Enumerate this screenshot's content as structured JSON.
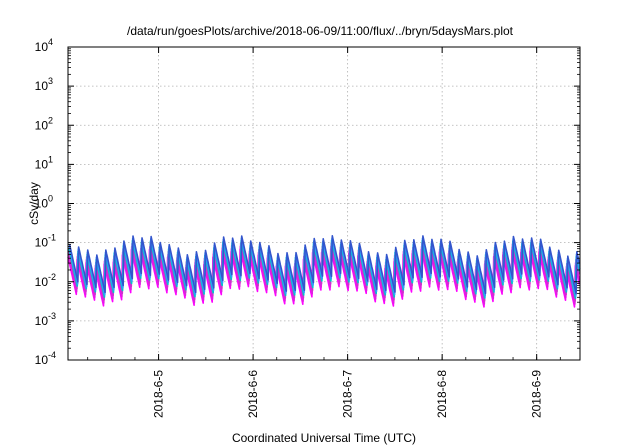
{
  "chart_data": {
    "type": "line",
    "title": "/data/run/goesPlots/archive/2018-06-09/11:00/flux/../bryn/5daysMars.plot",
    "xlabel": "Coordinated Universal Time (UTC)",
    "ylabel": "cSv/day",
    "y_scale": "log",
    "ylim": [
      0.0001,
      10000
    ],
    "y_ticks": [
      {
        "base": "10",
        "exp": "-4"
      },
      {
        "base": "10",
        "exp": "-3"
      },
      {
        "base": "10",
        "exp": "-2"
      },
      {
        "base": "10",
        "exp": "-1"
      },
      {
        "base": "10",
        "exp": "0"
      },
      {
        "base": "10",
        "exp": "1"
      },
      {
        "base": "10",
        "exp": "2"
      },
      {
        "base": "10",
        "exp": "3"
      },
      {
        "base": "10",
        "exp": "4"
      }
    ],
    "xlim": [
      "2018-06-04 01:00",
      "2018-06-09 11:00"
    ],
    "x_ticks": [
      {
        "label": "2018-6-5",
        "date": "2018-06-05"
      },
      {
        "label": "2018-6-6",
        "date": "2018-06-06"
      },
      {
        "label": "2018-6-7",
        "date": "2018-06-07"
      },
      {
        "label": "2018-6-8",
        "date": "2018-06-08"
      },
      {
        "label": "2018-6-9",
        "date": "2018-06-09"
      }
    ],
    "grid": true,
    "legend": "none",
    "series_pattern": {
      "sawtooth_period_hours": 2.3,
      "peak_hour_offsets": [
        0.0,
        0.3,
        0.6,
        0.9,
        1.2,
        1.5
      ],
      "peak_values": [
        0.12,
        0.09,
        0.07,
        0.05,
        0.04,
        0.025
      ],
      "trough_values": [
        0.015,
        0.011,
        0.008,
        0.006,
        0.0045,
        0.0035
      ]
    },
    "series": [
      {
        "color": "#ff00ff",
        "scale": 0.55
      },
      {
        "color": "#e020e0",
        "scale": 0.65
      },
      {
        "color": "#cc33cc",
        "scale": 0.78
      },
      {
        "color": "#00c8c8",
        "scale": 0.92
      },
      {
        "color": "#3399ff",
        "scale": 1.05
      },
      {
        "color": "#3355cc",
        "scale": 1.2
      }
    ]
  }
}
